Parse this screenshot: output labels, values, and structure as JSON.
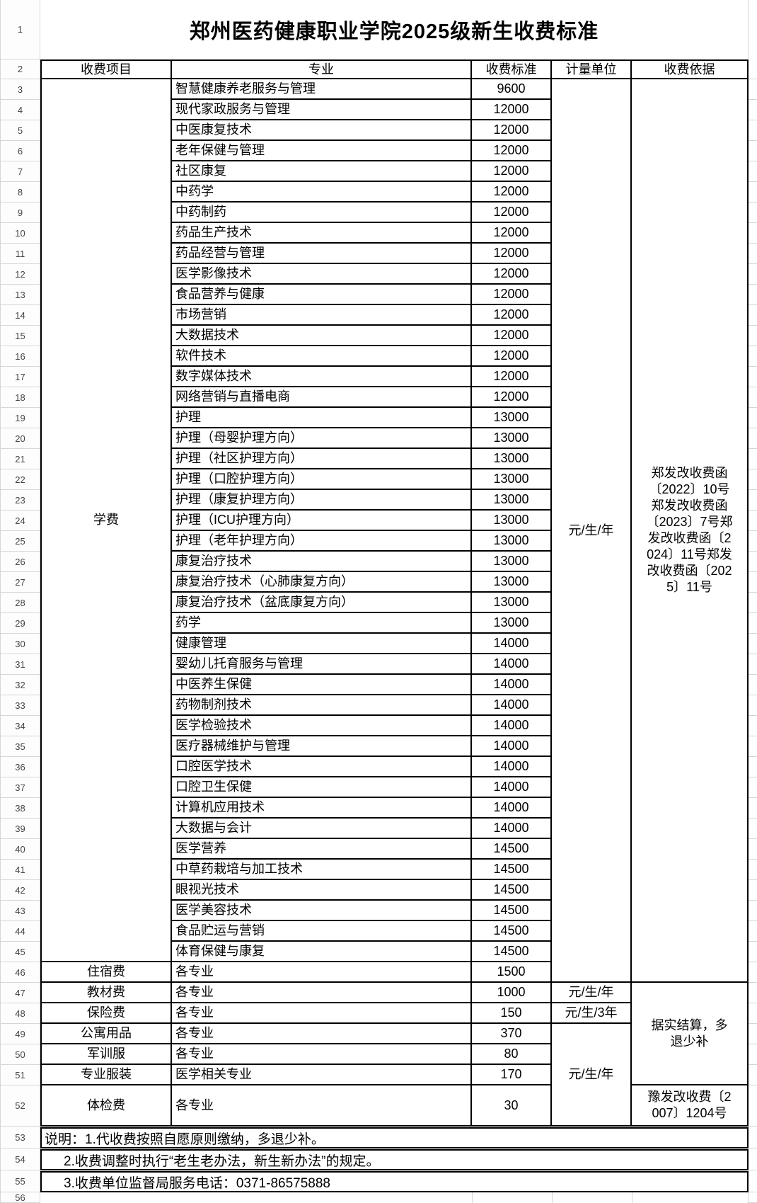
{
  "sheet": {
    "title": "郑州医药健康职业学院2025级新生收费标准",
    "row_numbers": [
      "1",
      "2",
      "3",
      "4",
      "5",
      "6",
      "7",
      "8",
      "9",
      "10",
      "11",
      "12",
      "13",
      "14",
      "15",
      "16",
      "17",
      "18",
      "19",
      "20",
      "21",
      "22",
      "23",
      "24",
      "25",
      "26",
      "27",
      "28",
      "29",
      "30",
      "31",
      "32",
      "33",
      "34",
      "35",
      "36",
      "37",
      "38",
      "39",
      "40",
      "41",
      "42",
      "43",
      "44",
      "45",
      "46",
      "47",
      "48",
      "49",
      "50",
      "51",
      "52",
      "53",
      "54",
      "55",
      "56"
    ]
  },
  "table": {
    "headers": [
      "收费项目",
      "专业",
      "收费标准",
      "计量单位",
      "收费依据"
    ],
    "rows": [
      {
        "n": 3,
        "major": "智慧健康养老服务与管理",
        "fee": "9600"
      },
      {
        "n": 4,
        "major": "现代家政服务与管理",
        "fee": "12000"
      },
      {
        "n": 5,
        "major": "中医康复技术",
        "fee": "12000"
      },
      {
        "n": 6,
        "major": "老年保健与管理",
        "fee": "12000"
      },
      {
        "n": 7,
        "major": "社区康复",
        "fee": "12000"
      },
      {
        "n": 8,
        "major": "中药学",
        "fee": "12000"
      },
      {
        "n": 9,
        "major": "中药制药",
        "fee": "12000"
      },
      {
        "n": 10,
        "major": "药品生产技术",
        "fee": "12000"
      },
      {
        "n": 11,
        "major": "药品经营与管理",
        "fee": "12000"
      },
      {
        "n": 12,
        "major": "医学影像技术",
        "fee": "12000"
      },
      {
        "n": 13,
        "major": "食品营养与健康",
        "fee": "12000"
      },
      {
        "n": 14,
        "major": "市场营销",
        "fee": "12000"
      },
      {
        "n": 15,
        "major": "大数据技术",
        "fee": "12000"
      },
      {
        "n": 16,
        "major": "软件技术",
        "fee": "12000"
      },
      {
        "n": 17,
        "major": "数字媒体技术",
        "fee": "12000"
      },
      {
        "n": 18,
        "major": "网络营销与直播电商",
        "fee": "12000"
      },
      {
        "n": 19,
        "major": "护理",
        "fee": "13000"
      },
      {
        "n": 20,
        "major": "护理（母婴护理方向）",
        "fee": "13000"
      },
      {
        "n": 21,
        "major": "护理（社区护理方向）",
        "fee": "13000"
      },
      {
        "n": 22,
        "major": "护理（口腔护理方向）",
        "fee": "13000"
      },
      {
        "n": 23,
        "major": "护理（康复护理方向）",
        "fee": "13000"
      },
      {
        "n": 24,
        "major": "护理（ICU护理方向）",
        "fee": "13000"
      },
      {
        "n": 25,
        "major": "护理（老年护理方向）",
        "fee": "13000"
      },
      {
        "n": 26,
        "major": "康复治疗技术",
        "fee": "13000"
      },
      {
        "n": 27,
        "major": "康复治疗技术（心肺康复方向）",
        "fee": "13000"
      },
      {
        "n": 28,
        "major": "康复治疗技术（盆底康复方向）",
        "fee": "13000"
      },
      {
        "n": 29,
        "major": "药学",
        "fee": "13000"
      },
      {
        "n": 30,
        "major": "健康管理",
        "fee": "14000"
      },
      {
        "n": 31,
        "major": "婴幼儿托育服务与管理",
        "fee": "14000"
      },
      {
        "n": 32,
        "major": "中医养生保健",
        "fee": "14000"
      },
      {
        "n": 33,
        "major": "药物制剂技术",
        "fee": "14000"
      },
      {
        "n": 34,
        "major": "医学检验技术",
        "fee": "14000"
      },
      {
        "n": 35,
        "major": "医疗器械维护与管理",
        "fee": "14000"
      },
      {
        "n": 36,
        "major": "口腔医学技术",
        "fee": "14000"
      },
      {
        "n": 37,
        "major": "口腔卫生保健",
        "fee": "14000"
      },
      {
        "n": 38,
        "major": "计算机应用技术",
        "fee": "14000"
      },
      {
        "n": 39,
        "major": "大数据与会计",
        "fee": "14000"
      },
      {
        "n": 40,
        "major": "医学营养",
        "fee": "14500"
      },
      {
        "n": 41,
        "major": "中草药栽培与加工技术",
        "fee": "14500"
      },
      {
        "n": 42,
        "major": "眼视光技术",
        "fee": "14500"
      },
      {
        "n": 43,
        "major": "医学美容技术",
        "fee": "14500"
      },
      {
        "n": 44,
        "major": "食品贮运与营销",
        "fee": "14500"
      },
      {
        "n": 45,
        "major": "体育保健与康复",
        "fee": "14500"
      },
      {
        "n": 46,
        "major": "各专业",
        "fee": "1500"
      },
      {
        "n": 47,
        "major": "各专业",
        "fee": "1000"
      },
      {
        "n": 48,
        "major": "各专业",
        "fee": "150"
      },
      {
        "n": 49,
        "major": "各专业",
        "fee": "370"
      },
      {
        "n": 50,
        "major": "各专业",
        "fee": "80"
      },
      {
        "n": 51,
        "major": "医学相关专业",
        "fee": "170"
      },
      {
        "n": 52,
        "major": "各专业",
        "fee": "30"
      }
    ],
    "item_col": [
      {
        "label": "学费",
        "from": 3,
        "to": 45
      },
      {
        "label": "住宿费",
        "from": 46,
        "to": 46
      },
      {
        "label": "教材费",
        "from": 47,
        "to": 47
      },
      {
        "label": "保险费",
        "from": 48,
        "to": 48
      },
      {
        "label": "公寓用品",
        "from": 49,
        "to": 49
      },
      {
        "label": "军训服",
        "from": 50,
        "to": 50
      },
      {
        "label": "专业服装",
        "from": 51,
        "to": 51
      },
      {
        "label": "体检费",
        "from": 52,
        "to": 52
      }
    ],
    "unit_col": [
      {
        "label": "元/生/年",
        "from": 3,
        "to": 46
      },
      {
        "label": "元/生/年",
        "from": 47,
        "to": 47
      },
      {
        "label": "元/生/3年",
        "from": 48,
        "to": 48
      },
      {
        "label": "元/生/年",
        "from": 49,
        "to": 52
      }
    ],
    "basis_col": [
      {
        "label": "郑发改收费函\n〔2022〕10号\n郑发改收费函\n〔2023〕7号郑\n发改收费函〔2\n024〕11号郑发\n改收费函〔202\n5〕11号",
        "from": 3,
        "to": 46
      },
      {
        "label": "据实结算，多\n退少补",
        "from": 47,
        "to": 51
      },
      {
        "label": "豫发改收费〔2\n007〕1204号",
        "from": 52,
        "to": 52
      }
    ]
  },
  "notes": [
    "说明：1.代收费按照自愿原则缴纳，多退少补。",
    "2.收费调整时执行“老生老办法，新生新办法”的规定。",
    "3.收费单位监督局服务电话：0371-86575888"
  ]
}
